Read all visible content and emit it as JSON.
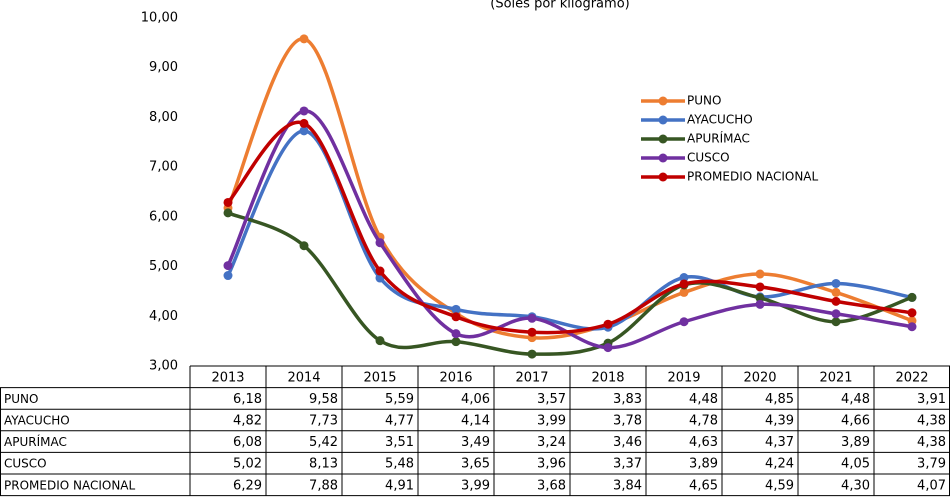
{
  "chart_data": {
    "type": "line",
    "subtitle": "(Soles por kilogramo)",
    "categories": [
      "2013",
      "2014",
      "2015",
      "2016",
      "2017",
      "2018",
      "2019",
      "2020",
      "2021",
      "2022"
    ],
    "ylim": [
      3,
      10
    ],
    "yticks": [
      {
        "value": 3,
        "label": "3,00"
      },
      {
        "value": 4,
        "label": "4,00"
      },
      {
        "value": 5,
        "label": "5,00"
      },
      {
        "value": 6,
        "label": "6,00"
      },
      {
        "value": 7,
        "label": "7,00"
      },
      {
        "value": 8,
        "label": "8,00"
      },
      {
        "value": 9,
        "label": "9,00"
      },
      {
        "value": 10,
        "label": "10,00"
      }
    ],
    "series": [
      {
        "name": "PUNO",
        "color": "#ed7d31",
        "values": [
          6.18,
          9.58,
          5.59,
          4.06,
          3.57,
          3.83,
          4.48,
          4.85,
          4.48,
          3.91
        ],
        "value_labels": [
          "6,18",
          "9,58",
          "5,59",
          "4,06",
          "3,57",
          "3,83",
          "4,48",
          "4,85",
          "4,48",
          "3,91"
        ]
      },
      {
        "name": "AYACUCHO",
        "color": "#4472c4",
        "values": [
          4.82,
          7.73,
          4.77,
          4.14,
          3.99,
          3.78,
          4.78,
          4.39,
          4.66,
          4.38
        ],
        "value_labels": [
          "4,82",
          "7,73",
          "4,77",
          "4,14",
          "3,99",
          "3,78",
          "4,78",
          "4,39",
          "4,66",
          "4,38"
        ]
      },
      {
        "name": "APURÍMAC",
        "color": "#375623",
        "values": [
          6.08,
          5.42,
          3.51,
          3.49,
          3.24,
          3.46,
          4.63,
          4.37,
          3.89,
          4.38
        ],
        "value_labels": [
          "6,08",
          "5,42",
          "3,51",
          "3,49",
          "3,24",
          "3,46",
          "4,63",
          "4,37",
          "3,89",
          "4,38"
        ]
      },
      {
        "name": "CUSCO",
        "color": "#7030a0",
        "values": [
          5.02,
          8.13,
          5.48,
          3.65,
          3.96,
          3.37,
          3.89,
          4.24,
          4.05,
          3.79
        ],
        "value_labels": [
          "5,02",
          "8,13",
          "5,48",
          "3,65",
          "3,96",
          "3,37",
          "3,89",
          "4,24",
          "4,05",
          "3,79"
        ]
      },
      {
        "name": "PROMEDIO NACIONAL",
        "color": "#c00000",
        "values": [
          6.29,
          7.88,
          4.91,
          3.99,
          3.68,
          3.84,
          4.65,
          4.59,
          4.3,
          4.07
        ],
        "value_labels": [
          "6,29",
          "7,88",
          "4,91",
          "3,99",
          "3,68",
          "3,84",
          "4,65",
          "4,59",
          "4,30",
          "4,07"
        ]
      }
    ]
  }
}
